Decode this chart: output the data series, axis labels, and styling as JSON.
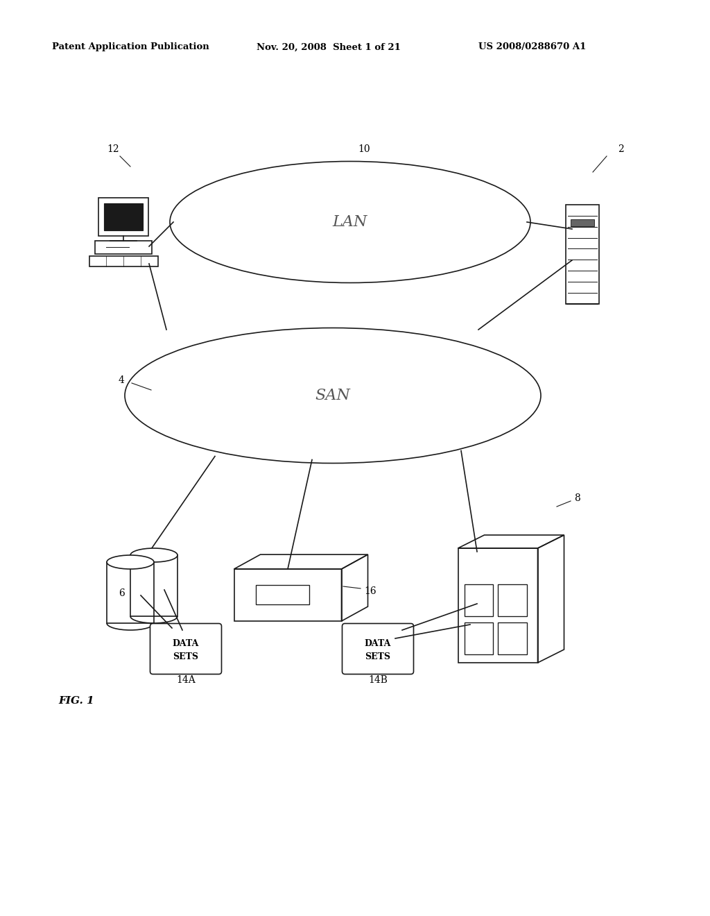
{
  "bg_color": "#ffffff",
  "header_text": "Patent Application Publication",
  "header_date": "Nov. 20, 2008  Sheet 1 of 21",
  "header_patent": "US 2008/0288670 A1",
  "fig_label": "FIG. 1",
  "lan_label": "LAN",
  "san_label": "SAN",
  "label_2": "2",
  "label_4": "4",
  "label_6": "6",
  "label_8": "8",
  "label_10": "10",
  "label_12": "12",
  "label_14a": "14A",
  "label_14b": "14B",
  "label_16": "16",
  "line_color": "#1a1a1a",
  "line_width": 1.2
}
